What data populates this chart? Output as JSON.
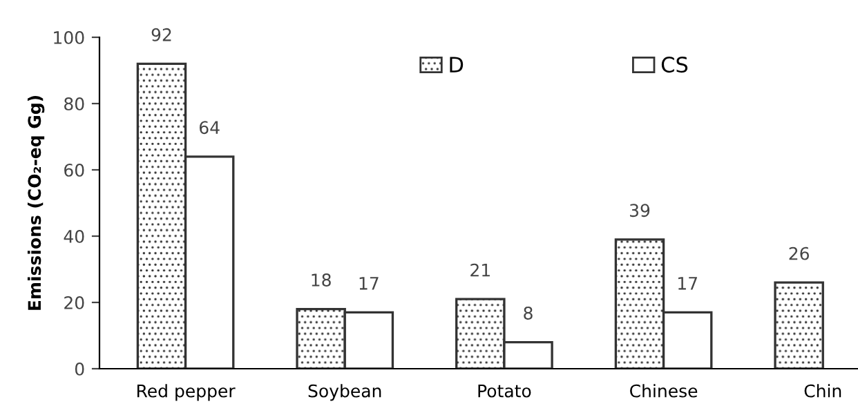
{
  "chart_data": {
    "type": "bar",
    "ylabel": "Emissions (CO₂-eq Gg)",
    "categories": [
      "Red pepper",
      "Soybean",
      "Potato",
      "Chinese",
      "Chin"
    ],
    "series": [
      {
        "name": "D",
        "color": "#333333",
        "values": [
          92,
          18,
          21,
          39,
          26
        ]
      },
      {
        "name": "CS",
        "color": "#ffffff",
        "values": [
          64,
          17,
          8,
          17,
          null
        ]
      }
    ],
    "ylim": [
      0,
      100
    ],
    "yticks": [
      0,
      20,
      40,
      60,
      80,
      100
    ],
    "grid": false,
    "legend": "top",
    "data_labels": true
  }
}
